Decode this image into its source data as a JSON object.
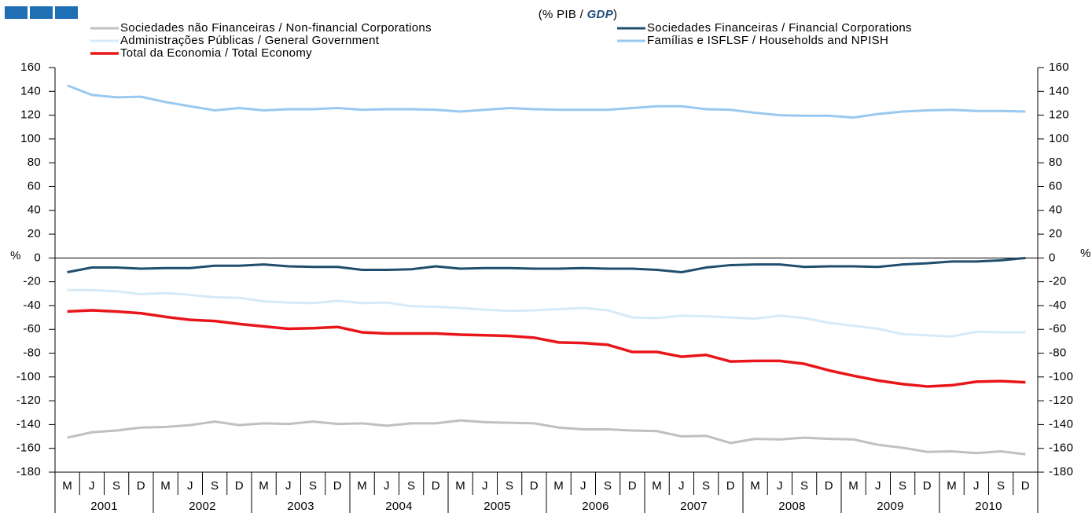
{
  "chart_data": {
    "type": "line",
    "subtitle": [
      "(% PIB / ",
      "GDP",
      ")"
    ],
    "y_unit": "%",
    "categories": [
      "M",
      "J",
      "S",
      "D",
      "M",
      "J",
      "S",
      "D",
      "M",
      "J",
      "S",
      "D",
      "M",
      "J",
      "S",
      "D",
      "M",
      "J",
      "S",
      "D",
      "M",
      "J",
      "S",
      "D",
      "M",
      "J",
      "S",
      "D",
      "M",
      "J",
      "S",
      "D",
      "M",
      "J",
      "S",
      "D",
      "M",
      "J",
      "S",
      "D"
    ],
    "years": [
      "2001",
      "2002",
      "2003",
      "2004",
      "2005",
      "2006",
      "2007",
      "2008",
      "2009",
      "2010"
    ],
    "ylim": [
      -180,
      160
    ],
    "yticks": [
      -180,
      -160,
      -140,
      -120,
      -100,
      -80,
      -60,
      -40,
      -20,
      0,
      20,
      40,
      60,
      80,
      100,
      120,
      140,
      160
    ],
    "y2lim": [
      -180,
      160
    ],
    "y2ticks": [
      -180,
      -160,
      -140,
      -120,
      -100,
      -80,
      -60,
      -40,
      -20,
      0,
      20,
      40,
      60,
      80,
      100,
      120,
      140,
      160
    ],
    "series": [
      {
        "name": "Sociedades não Financeiras / Non-financial Corporations",
        "color": "#c0c0c0",
        "values": [
          -151,
          -146.5,
          -145,
          -142.5,
          -142,
          -140.5,
          -137.5,
          -140.5,
          -139,
          -139.5,
          -137.5,
          -139.5,
          -139,
          -141,
          -139,
          -139,
          -136.5,
          -138,
          -138.5,
          -139,
          -142.5,
          -144,
          -144,
          -145,
          -145.5,
          -150,
          -149.5,
          -155.5,
          -152,
          -152.5,
          -151,
          -152,
          -152.5,
          -157,
          -159.5,
          -163,
          -162.5,
          -164,
          -162.5,
          -165
        ]
      },
      {
        "name": "Sociedades Financeiras / Financial Corporations",
        "color": "#1f4e6e",
        "values": [
          -12,
          -8,
          -8,
          -9,
          -8.5,
          -8.5,
          -6.5,
          -6.5,
          -5.5,
          -7,
          -7.5,
          -7.5,
          -10,
          -10,
          -9.5,
          -7,
          -9,
          -8.5,
          -8.5,
          -9,
          -9,
          -8.5,
          -9,
          -9,
          -10,
          -12,
          -8,
          -6,
          -5.5,
          -5.5,
          -7.5,
          -7,
          -7,
          -7.5,
          -5.5,
          -4.5,
          -3,
          -3,
          -2,
          0
        ]
      },
      {
        "name": "Administrações Públicas / General Government",
        "color": "#d6eaf8",
        "values": [
          -27,
          -27,
          -28,
          -30.5,
          -29.5,
          -31,
          -33,
          -33.5,
          -36.5,
          -37.5,
          -38,
          -36,
          -38,
          -37.5,
          -40.5,
          -41,
          -42,
          -43.5,
          -44.5,
          -44,
          -43,
          -42,
          -44,
          -50,
          -50.5,
          -48.5,
          -49,
          -50,
          -51,
          -48.5,
          -50.5,
          -54.5,
          -57,
          -59.5,
          -64,
          -65,
          -66,
          -62,
          -62.5,
          -62.5
        ]
      },
      {
        "name": "Famílias e ISFLSF / Households and NPISH",
        "color": "#99c9f0",
        "values": [
          145,
          137,
          135,
          135.5,
          131,
          127.5,
          124,
          126,
          124,
          125,
          125,
          126,
          124.5,
          125,
          125,
          124.5,
          123,
          124.5,
          126,
          125,
          124.5,
          124.5,
          124.5,
          126,
          127.5,
          127.5,
          125,
          124.5,
          122,
          120,
          119.5,
          119.5,
          118,
          121,
          123,
          124,
          124.5,
          123.5,
          123.5,
          123
        ]
      },
      {
        "name": "Total da Economia / Total Economy",
        "color": "#e8161b",
        "values": [
          -45,
          -44,
          -45,
          -46.5,
          -49.5,
          -52,
          -53,
          -55.5,
          -57.5,
          -59.5,
          -59,
          -58,
          -62.5,
          -63.5,
          -63.5,
          -63.5,
          -64.5,
          -65,
          -65.5,
          -67,
          -71,
          -71.5,
          -73,
          -79,
          -79,
          -83,
          -81.5,
          -87,
          -86.5,
          -86.5,
          -89,
          -94.5,
          -99,
          -103,
          -106,
          -108,
          -107,
          -104,
          -103.5,
          -104.5
        ]
      }
    ]
  }
}
